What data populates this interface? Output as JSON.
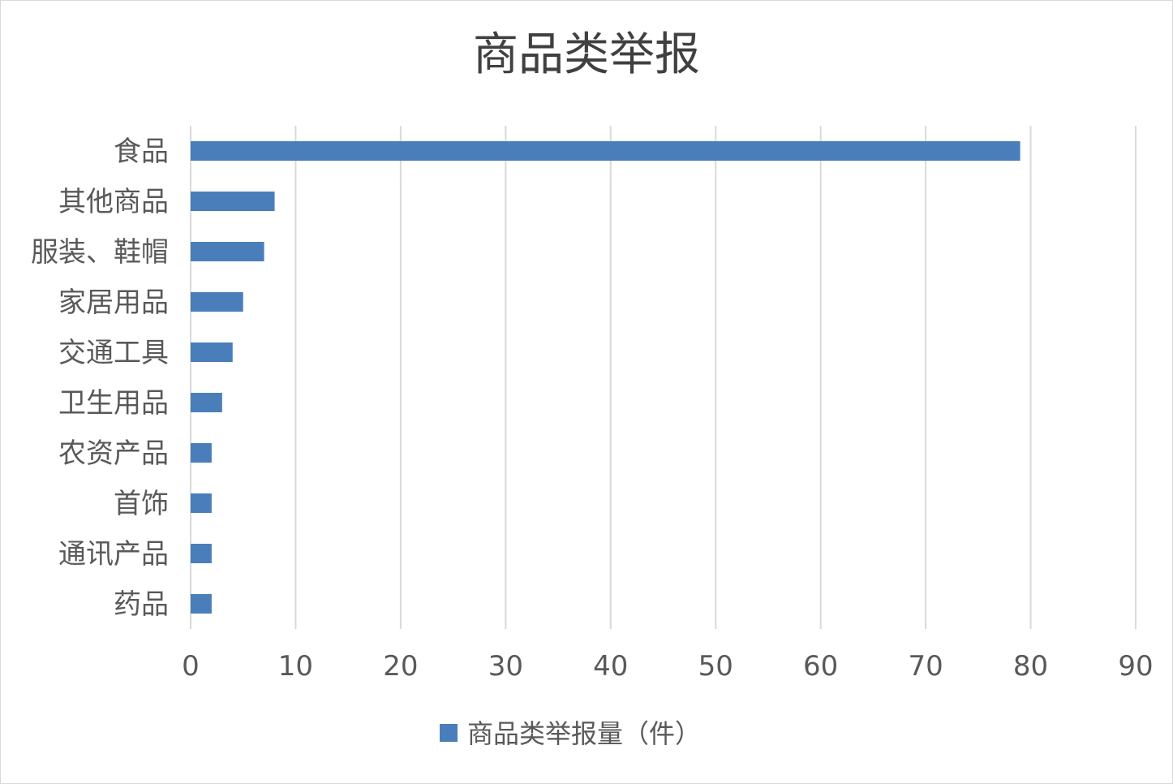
{
  "chart_data": {
    "type": "bar",
    "orientation": "horizontal",
    "title": "商品类举报",
    "categories": [
      "食品",
      "其他商品",
      "服装、鞋帽",
      "家居用品",
      "交通工具",
      "卫生用品",
      "农资产品",
      "首饰",
      "通讯产品",
      "药品"
    ],
    "series": [
      {
        "name": "商品类举报量（件）",
        "values": [
          79,
          8,
          7,
          5,
          4,
          3,
          2,
          2,
          2,
          2
        ],
        "color": "#4a7ebb"
      }
    ],
    "xlim": [
      0,
      90
    ],
    "ticks": [
      "0",
      "10",
      "20",
      "30",
      "40",
      "50",
      "60",
      "70",
      "80",
      "90"
    ],
    "grid": true,
    "legend_position": "bottom"
  }
}
